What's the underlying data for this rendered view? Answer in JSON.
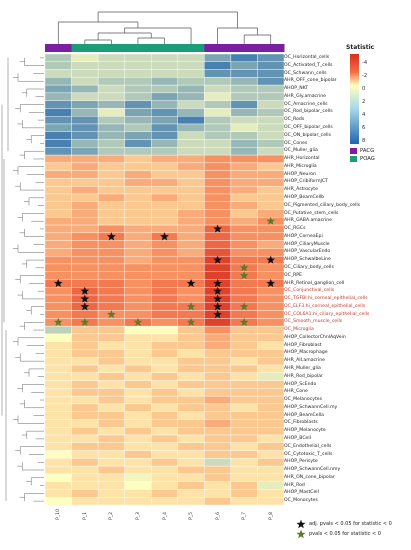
{
  "chart_data": {
    "type": "heatmap",
    "columns": [
      "P_10",
      "P_1",
      "P_2",
      "P_3",
      "P_4",
      "P_5",
      "P_6",
      "P_7",
      "P_8"
    ],
    "column_groups": [
      "PACG",
      "POAG",
      "POAG",
      "POAG",
      "POAG",
      "POAG",
      "PACG",
      "PACG",
      "PACG"
    ],
    "rows": [
      "OC_Horizontal_cells",
      "OC_Activated_T_cells",
      "OC_Schwann_cells",
      "AHR_OFF_cone_bipolar",
      "AHOP_NKT",
      "AHR_Gly.amacrine",
      "OC_Amacrine_cells",
      "OC_Rod_bipolar_cells",
      "OC_Rods",
      "OC_OFF_bipolar_cells",
      "OC_ON_bipolar_cells",
      "OC_Cones",
      "OC_Muller_glia",
      "AHR_Horizontal",
      "AHR_Microglia",
      "AHOP_Neuron",
      "AHOP_CribiformJCT",
      "AHR_Astrocyte",
      "AHOP_BeamCellb",
      "OC_Pigmented_ciliary_body_cells",
      "OC_Putative_stem_cells",
      "AHR_GABA.amacrine",
      "OC_RGCs",
      "AHOP_CorneaEpi",
      "AHOP_CiliaryMuscle",
      "AHOP_VascularEndo",
      "AHOP_SchwalbeLine",
      "OC_Ciliary_body_cells",
      "OC_RPE",
      "AHR_Retinal_ganglion_cell",
      "OC_Conjunctival_cells",
      "OC_TGFBI.hi_corneal_epithelial_cells",
      "OC_ELF3.hi_corneal_epithelial_cells",
      "OC_COL6A1.hi_ciliary_epithelial_cells",
      "OC_Smooth_muscle_cells",
      "OC_Microglia",
      "AHOP_CollectorChnlAqVein",
      "AHOP_Fibroblast",
      "AHOP_Macrophage",
      "AHR_AII.amacrine",
      "AHR_Muller_glia",
      "AHR_Rod_bipolar",
      "AHOP_ScEndo",
      "AHR_Cone",
      "OC_Melanocytes",
      "AHOP_SchwannCell.my",
      "AHOP_BeamCella",
      "OC_Fibroblasts",
      "AHOP_Melanocyte",
      "AHOP_BCell",
      "OC_Endothelial_cells",
      "OC_Cytotoxic_T_cells",
      "AHOP_Pericyte",
      "AHOP_SchwannCell.nmy",
      "AHR_ON_cone_bipolar",
      "AHR_Rod",
      "AHOP_MastCell",
      "OC_Monocytes"
    ],
    "values": [
      [
        3,
        1,
        2,
        2,
        2,
        2,
        5,
        7,
        6
      ],
      [
        3,
        2,
        2,
        2,
        2,
        2,
        7,
        5,
        6
      ],
      [
        2,
        2,
        2,
        2,
        2,
        2,
        6,
        6,
        6
      ],
      [
        4,
        2,
        3,
        3,
        4,
        3,
        3,
        4,
        6
      ],
      [
        5,
        4,
        2,
        3,
        3,
        4,
        2,
        3,
        3
      ],
      [
        4,
        2,
        2,
        3,
        5,
        4,
        1,
        3,
        3
      ],
      [
        6,
        5,
        4,
        6,
        4,
        2,
        3,
        6,
        2
      ],
      [
        7,
        4,
        1,
        5,
        6,
        4,
        1,
        4,
        3
      ],
      [
        6,
        6,
        3,
        4,
        5,
        7,
        3,
        2,
        2
      ],
      [
        5,
        6,
        4,
        3,
        6,
        4,
        3,
        1,
        2
      ],
      [
        7,
        6,
        4,
        5,
        6,
        2,
        3,
        3,
        2
      ],
      [
        7,
        4,
        3,
        6,
        4,
        2,
        2,
        4,
        3
      ],
      [
        6,
        5,
        3,
        3,
        3,
        2,
        2,
        4,
        2
      ],
      [
        -1.5,
        -1.5,
        -1.5,
        -1,
        -1.5,
        -1.5,
        -2,
        -2,
        -2
      ],
      [
        -1,
        -1.5,
        -1,
        -1,
        -1,
        -1.5,
        -2,
        -1.5,
        -1
      ],
      [
        -1.5,
        -1.5,
        -1,
        -1.5,
        -1,
        -1,
        -2,
        -1.5,
        -1.5
      ],
      [
        -1,
        -1,
        -1,
        -1.5,
        -1.5,
        -1,
        -2,
        -1.5,
        -1.5
      ],
      [
        -1,
        -1.5,
        -1,
        -1,
        -1,
        -1,
        -2,
        -1.5,
        -1
      ],
      [
        -1,
        -1,
        -1.5,
        -1,
        -1.5,
        -1,
        -2,
        -1,
        -1
      ],
      [
        -1,
        -1.5,
        -1,
        -1,
        -1,
        -1,
        -2,
        -1.5,
        -1
      ],
      [
        -1,
        -1.5,
        -1,
        -1,
        -1,
        -1.5,
        -2,
        -1,
        -1.5
      ],
      [
        -1.5,
        -1.5,
        -1,
        -1,
        -1,
        -1.5,
        -2,
        -1.5,
        -2
      ],
      [
        -1.5,
        -1.5,
        -2,
        -1.5,
        -1.5,
        -1.5,
        -3,
        -2,
        -2
      ],
      [
        -1.5,
        -2,
        -2.5,
        -1.5,
        -2.5,
        -1.5,
        -3,
        -2,
        -2
      ],
      [
        -1.5,
        -2,
        -2,
        -1.5,
        -2,
        -1.5,
        -3,
        -2,
        -1.5
      ],
      [
        -1.5,
        -2,
        -2,
        -1.5,
        -2,
        -1.5,
        -3.5,
        -2,
        -2
      ],
      [
        -2,
        -2,
        -2,
        -1.5,
        -2,
        -2,
        -4,
        -2.5,
        -2.5
      ],
      [
        -2,
        -2,
        -2,
        -2,
        -2,
        -2,
        -4,
        -2.5,
        -2
      ],
      [
        -2,
        -2,
        -2,
        -2,
        -2,
        -2,
        -4,
        -2.5,
        -2
      ],
      [
        -2.5,
        -2.5,
        -2.5,
        -2,
        -2.5,
        -2.5,
        -4,
        -2.5,
        -2.5
      ],
      [
        -2,
        -3,
        -2.5,
        -2,
        -2.5,
        -2,
        -4,
        -2.5,
        -2
      ],
      [
        -2,
        -3,
        -2.5,
        -2,
        -2.5,
        -2,
        -4,
        -2.5,
        -2
      ],
      [
        -2,
        -3,
        -2.5,
        -2,
        -2.5,
        -2.5,
        -4,
        -2.5,
        -2
      ],
      [
        -2,
        -2.5,
        -2,
        -2,
        -2.5,
        -2.5,
        -4,
        -2.5,
        -2
      ],
      [
        -2,
        -2.5,
        -2,
        -2.5,
        -2,
        -2.5,
        -4,
        -2.5,
        -2
      ],
      [
        2.5,
        -1,
        -1,
        0,
        0,
        -1,
        -2,
        -1,
        -1
      ],
      [
        0,
        -1,
        -1,
        -0.5,
        -0.5,
        -1,
        -1.5,
        -1,
        -1
      ],
      [
        -0.5,
        -1,
        -0.5,
        -0.5,
        -1,
        -1,
        -1.5,
        -1,
        -0.5
      ],
      [
        -0.5,
        -1,
        -1,
        -0.5,
        -1,
        -0.5,
        -1,
        -1,
        -1
      ],
      [
        -0.5,
        -0.5,
        -1,
        -0.5,
        -0.5,
        -1,
        -1,
        -0.5,
        -1
      ],
      [
        -0.5,
        -1,
        -0.5,
        -1,
        -0.5,
        -1,
        -1,
        -1,
        -0.5
      ],
      [
        -0.5,
        -0.5,
        -1,
        -0.5,
        -1,
        -0.5,
        -1,
        -0.5,
        1
      ],
      [
        -0.5,
        -1,
        -0.5,
        -1,
        -0.5,
        -1,
        -1,
        -1,
        -1
      ],
      [
        -0.5,
        -1,
        -1,
        -0.5,
        -1,
        -0.5,
        -1,
        -1,
        -1
      ],
      [
        -0.5,
        -0.5,
        -1,
        -0.5,
        -1,
        -1,
        -1.5,
        -1,
        -1
      ],
      [
        -0.5,
        -1,
        -0.5,
        -1,
        -0.5,
        -1,
        -1,
        -0.5,
        -1
      ],
      [
        -0.5,
        -1,
        -1,
        -0.5,
        -1,
        -0.5,
        -1,
        -1,
        -1
      ],
      [
        -0.5,
        -0.5,
        -1,
        -0.5,
        -1,
        -1,
        -1.5,
        -1,
        -1
      ],
      [
        -0.5,
        -1,
        -0.5,
        -1,
        -0.5,
        -1,
        -1,
        -1,
        -1
      ],
      [
        -0.5,
        -0.5,
        -1,
        -0.5,
        -1,
        -0.5,
        -1,
        -1,
        -0.5
      ],
      [
        -0.5,
        -1,
        -1,
        -0.5,
        -0.5,
        -1,
        -1,
        -0.5,
        -1
      ],
      [
        0,
        -0.5,
        -0.5,
        -1,
        -0.5,
        -0.5,
        -1,
        -1,
        -0.5
      ],
      [
        -0.5,
        -1,
        -0.5,
        -0.5,
        -1,
        -0.5,
        2,
        -0.5,
        -1
      ],
      [
        -0.5,
        -0.5,
        -1,
        -0.5,
        -0.5,
        -1,
        -1,
        -0.5,
        -0.5
      ],
      [
        0,
        -0.5,
        -0.5,
        0.5,
        -0.5,
        -0.5,
        -1,
        -0.5,
        -0.5
      ],
      [
        -0.5,
        -0.5,
        -0.5,
        0,
        -0.5,
        -1,
        -0.5,
        -1,
        1
      ],
      [
        -0.5,
        -1,
        -0.5,
        -0.5,
        -1,
        -0.5,
        -0.5,
        -1,
        -0.5
      ],
      [
        0,
        -0.5,
        -0.5,
        -0.5,
        -0.5,
        -0.5,
        -1,
        -0.5,
        -0.5
      ]
    ],
    "significant_adj": [
      [
        22,
        6
      ],
      [
        23,
        2
      ],
      [
        23,
        4
      ],
      [
        26,
        6
      ],
      [
        26,
        8
      ],
      [
        29,
        0
      ],
      [
        29,
        5
      ],
      [
        29,
        6
      ],
      [
        29,
        8
      ],
      [
        30,
        1
      ],
      [
        30,
        6
      ],
      [
        31,
        1
      ],
      [
        31,
        6
      ],
      [
        32,
        1
      ],
      [
        32,
        6
      ],
      [
        33,
        6
      ]
    ],
    "significant_raw": [
      [
        21,
        8
      ],
      [
        27,
        7
      ],
      [
        28,
        7
      ],
      [
        32,
        5
      ],
      [
        32,
        7
      ],
      [
        33,
        2
      ],
      [
        34,
        0
      ],
      [
        34,
        1
      ],
      [
        34,
        3
      ],
      [
        34,
        5
      ],
      [
        34,
        7
      ]
    ],
    "legend_title": "Statistic",
    "colorbar_ticks": [
      "-4",
      "-2",
      "0",
      "2",
      "4",
      "6",
      "8"
    ],
    "colorscale": {
      "min": -4.5,
      "max": 8.5,
      "neg": "#d7301f",
      "mid": "#ffffbf",
      "pos": "#2166ac"
    },
    "groups": [
      {
        "name": "PACG",
        "color": "#7b1fa2"
      },
      {
        "name": "POAG",
        "color": "#1b9e77"
      }
    ],
    "annotations": [
      {
        "label": "adj. pvals < 0.05 for statistic < 0",
        "color": "#111111"
      },
      {
        "label": "pvals < 0.05 for statistic < 0",
        "color": "#5c7a2a"
      }
    ]
  }
}
